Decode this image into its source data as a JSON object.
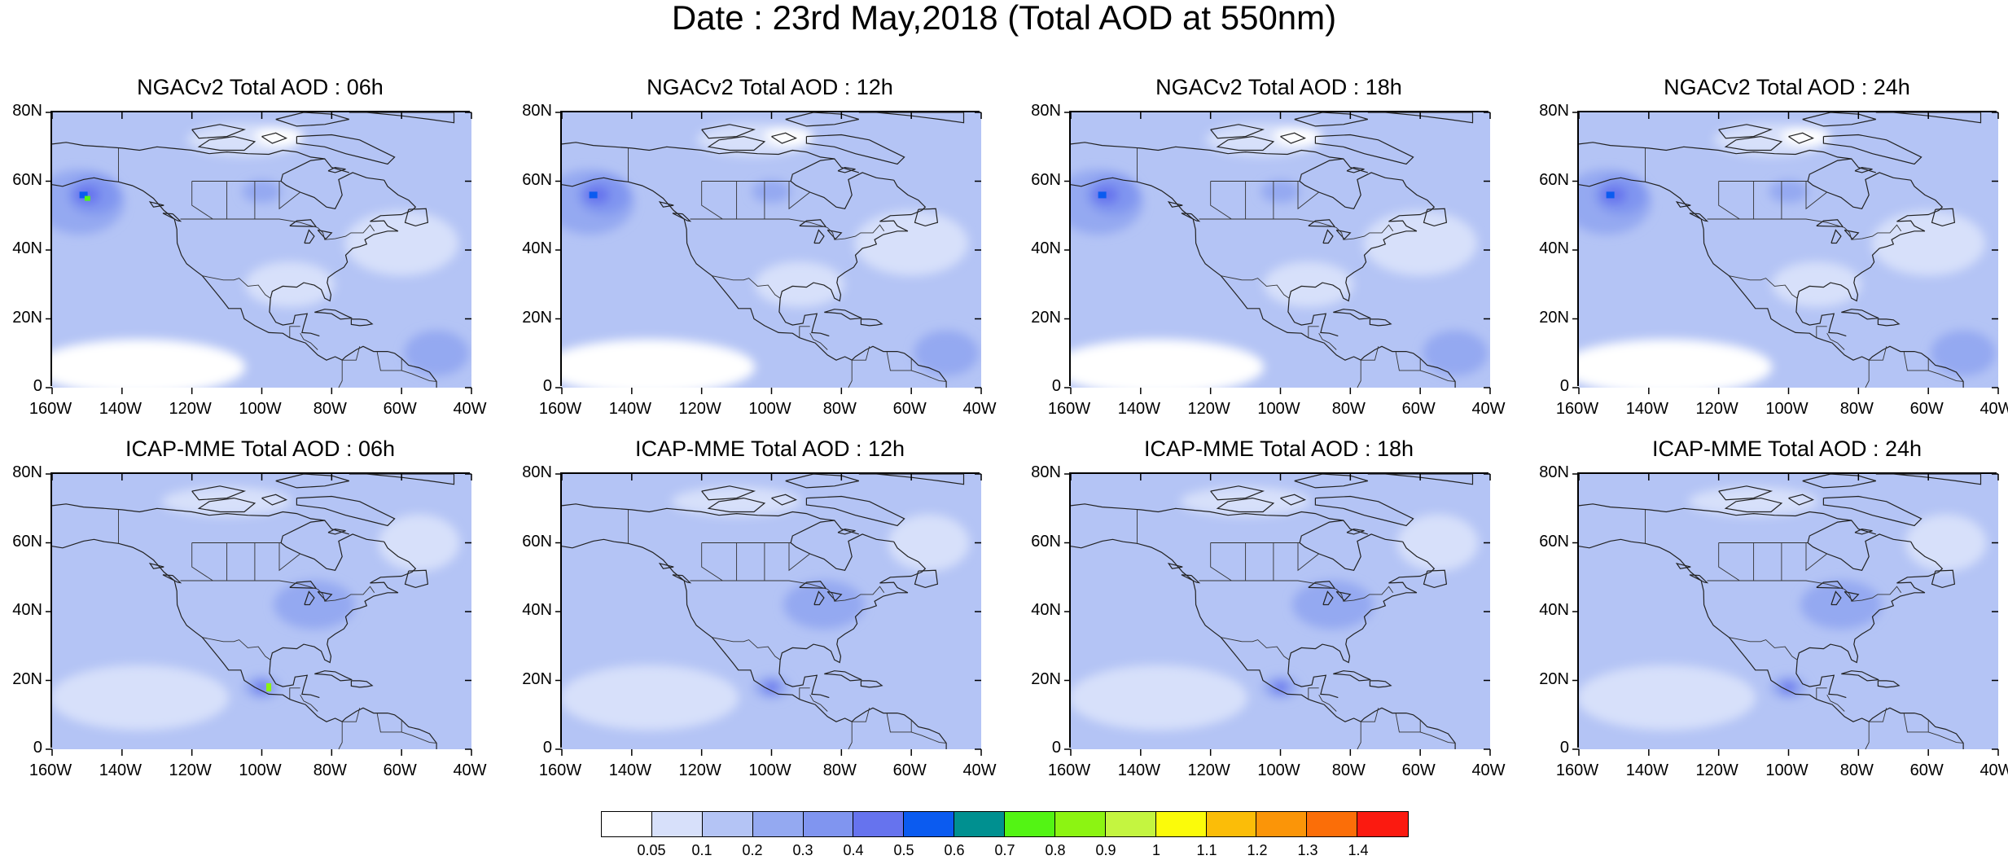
{
  "title": "Date : 23rd May,2018 (Total AOD at 550nm)",
  "panels": [
    {
      "title": "NGACv2 Total AOD : 06h",
      "model": "ngac",
      "hour": 6
    },
    {
      "title": "NGACv2 Total AOD : 12h",
      "model": "ngac",
      "hour": 12
    },
    {
      "title": "NGACv2 Total AOD : 18h",
      "model": "ngac",
      "hour": 18
    },
    {
      "title": "NGACv2 Total AOD : 24h",
      "model": "ngac",
      "hour": 24
    },
    {
      "title": "ICAP-MME Total AOD : 06h",
      "model": "icap",
      "hour": 6
    },
    {
      "title": "ICAP-MME Total AOD : 12h",
      "model": "icap",
      "hour": 12
    },
    {
      "title": "ICAP-MME Total AOD : 18h",
      "model": "icap",
      "hour": 18
    },
    {
      "title": "ICAP-MME Total AOD : 24h",
      "model": "icap",
      "hour": 24
    }
  ],
  "axes": {
    "lat_labels": [
      "80N",
      "60N",
      "40N",
      "20N",
      "0"
    ],
    "lon_labels": [
      "160W",
      "140W",
      "120W",
      "100W",
      "80W",
      "60W",
      "40W"
    ]
  },
  "colorbar": {
    "labels": [
      "0.05",
      "0.1",
      "0.2",
      "0.3",
      "0.4",
      "0.5",
      "0.6",
      "0.7",
      "0.8",
      "0.9",
      "1",
      "1.1",
      "1.2",
      "1.3",
      "1.4"
    ],
    "colors": [
      "#ffffff",
      "#d7e0fa",
      "#b4c4f5",
      "#94a9f1",
      "#8095f0",
      "#6673ee",
      "#0b5bf0",
      "#009090",
      "#53f414",
      "#8cf412",
      "#c4f540",
      "#fbfb0a",
      "#fbbd08",
      "#fb9508",
      "#fb6e08",
      "#fb1a10"
    ]
  }
}
